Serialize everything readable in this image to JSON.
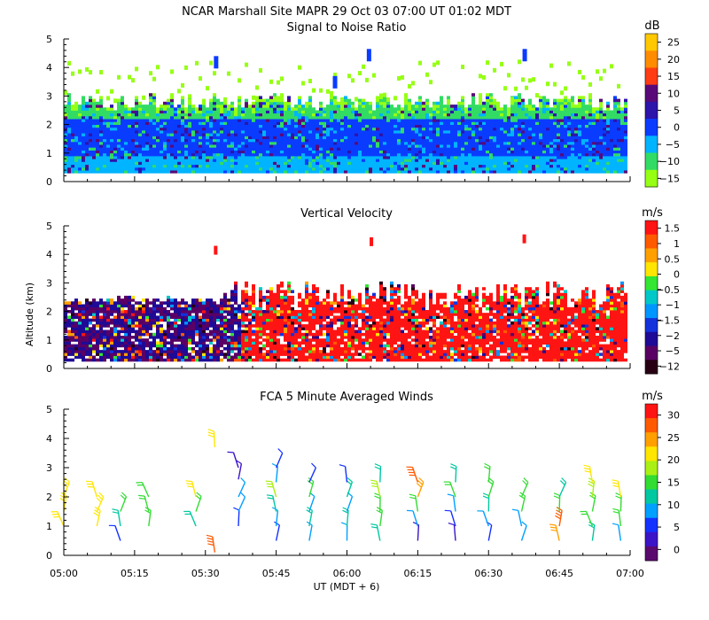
{
  "figure": {
    "title": "NCAR Marshall Site   MAPR 29 Oct 03   07:00 UT   01:02   MDT",
    "xlabel": "UT  (MDT + 6)",
    "x_ticks": [
      "05:00",
      "05:15",
      "05:30",
      "05:45",
      "06:00",
      "06:15",
      "06:30",
      "06:45",
      "07:00"
    ],
    "y_ticks": [
      "0",
      "1",
      "2",
      "3",
      "4",
      "5"
    ],
    "ylabel": "Altitude (km)"
  },
  "chart_data": [
    {
      "type": "heatmap",
      "title": "Signal to Noise Ratio",
      "xlabel": "UT  (MDT + 6)",
      "ylabel": "Altitude (km)",
      "x_range_hours_ut": [
        5.0,
        7.0
      ],
      "ylim": [
        0,
        5
      ],
      "colorbar_unit": "dB",
      "colorbar_ticks": [
        "25",
        "20",
        "15",
        "10",
        "5",
        "0",
        "−5",
        "−10",
        "−15"
      ],
      "colors": [
        "#ffc800",
        "#ff8c00",
        "#ff3c14",
        "#5a0a78",
        "#2d14aa",
        "#0a3cff",
        "#00b4ff",
        "#32dc64",
        "#96ff14"
      ],
      "bands": [
        {
          "from_km": 0.3,
          "to_km": 0.8,
          "dominant_db": -5
        },
        {
          "from_km": 0.8,
          "to_km": 2.2,
          "dominant_db": 0
        },
        {
          "from_km": 2.2,
          "to_km": 2.6,
          "dominant_db": -10
        },
        {
          "from_km": 2.6,
          "to_km": 3.6,
          "dominant_db": -15
        }
      ]
    },
    {
      "type": "heatmap",
      "title": "Vertical Velocity",
      "xlabel": "UT  (MDT + 6)",
      "ylabel": "Altitude (km)",
      "x_range_hours_ut": [
        5.0,
        7.0
      ],
      "ylim": [
        0,
        5
      ],
      "colorbar_unit": "m/s",
      "colorbar_ticks": [
        "1.5",
        "1",
        "0.5",
        "0",
        "−0.5",
        "−1",
        "−1.5",
        "−2",
        "−5",
        "−12"
      ],
      "colors": [
        "#ff1414",
        "#ff5a00",
        "#ffa000",
        "#ffe600",
        "#32e632",
        "#00c8c8",
        "#0096ff",
        "#1432dc",
        "#1e0a96",
        "#5a0064",
        "#280014"
      ],
      "bands": [
        {
          "from_time_ut": "05:00",
          "to_time_ut": "05:40",
          "dominant_ms": -5
        },
        {
          "from_time_ut": "05:40",
          "to_time_ut": "07:00",
          "dominant_ms": 1.5
        }
      ],
      "echo_top_km": 2.4
    },
    {
      "type": "scatter",
      "title": "FCA 5 Minute Averaged Winds",
      "xlabel": "UT  (MDT + 6)",
      "ylabel": "Altitude (km)",
      "x_range_hours_ut": [
        5.0,
        7.0
      ],
      "ylim": [
        0,
        5
      ],
      "colorbar_unit": "m/s",
      "colorbar_ticks": [
        "30",
        "25",
        "20",
        "15",
        "10",
        "5",
        "0"
      ],
      "colors": [
        "#ff1414",
        "#ff5a00",
        "#ffa000",
        "#ffe600",
        "#aaf014",
        "#32dc32",
        "#00c8a0",
        "#00a0ff",
        "#1432ff",
        "#3c14c8",
        "#5a0a6e"
      ],
      "barbs": [
        {
          "time": "05:00",
          "alts_km": [
            1.0,
            1.5,
            2.0
          ],
          "speeds_ms": [
            20,
            22,
            21
          ]
        },
        {
          "time": "05:07",
          "alts_km": [
            1.0,
            1.5,
            2.0
          ],
          "speeds_ms": [
            20,
            22,
            21
          ]
        },
        {
          "time": "05:12",
          "alts_km": [
            0.5,
            1.0,
            1.5
          ],
          "speeds_ms": [
            5,
            12,
            14
          ]
        },
        {
          "time": "05:18",
          "alts_km": [
            1.0,
            1.5,
            2.0
          ],
          "speeds_ms": [
            14,
            15,
            16
          ]
        },
        {
          "time": "05:28",
          "alts_km": [
            1.0,
            1.5,
            2.0
          ],
          "speeds_ms": [
            12,
            14,
            20
          ]
        },
        {
          "time": "05:32",
          "alts_km": [
            0.1,
            3.7
          ],
          "speeds_ms": [
            28,
            22
          ]
        },
        {
          "time": "05:37",
          "alts_km": [
            1.0,
            1.5,
            2.0,
            2.6,
            3.0
          ],
          "speeds_ms": [
            5,
            8,
            10,
            4,
            3
          ]
        },
        {
          "time": "05:45",
          "alts_km": [
            0.5,
            1.0,
            1.5,
            2.0,
            2.5,
            3.0
          ],
          "speeds_ms": [
            6,
            10,
            12,
            18,
            8,
            5
          ]
        },
        {
          "time": "05:52",
          "alts_km": [
            0.5,
            1.0,
            1.5,
            2.0,
            2.5
          ],
          "speeds_ms": [
            8,
            12,
            10,
            15,
            6
          ]
        },
        {
          "time": "06:00",
          "alts_km": [
            0.5,
            1.0,
            1.5,
            2.0,
            2.5
          ],
          "speeds_ms": [
            10,
            13,
            10,
            12,
            6
          ]
        },
        {
          "time": "06:07",
          "alts_km": [
            0.5,
            1.0,
            1.5,
            2.0,
            2.5
          ],
          "speeds_ms": [
            11,
            14,
            16,
            18,
            13
          ]
        },
        {
          "time": "06:15",
          "alts_km": [
            0.5,
            1.0,
            1.5,
            2.0,
            2.5
          ],
          "speeds_ms": [
            4,
            8,
            14,
            24,
            26
          ]
        },
        {
          "time": "06:23",
          "alts_km": [
            0.5,
            1.0,
            1.5,
            2.0,
            2.5
          ],
          "speeds_ms": [
            3,
            6,
            10,
            14,
            12
          ]
        },
        {
          "time": "06:30",
          "alts_km": [
            0.5,
            1.0,
            1.5,
            2.0,
            2.5
          ],
          "speeds_ms": [
            6,
            9,
            12,
            14,
            16
          ]
        },
        {
          "time": "06:37",
          "alts_km": [
            0.5,
            1.0,
            1.5,
            2.0
          ],
          "speeds_ms": [
            8,
            10,
            14,
            16
          ]
        },
        {
          "time": "06:45",
          "alts_km": [
            0.5,
            1.0,
            1.5,
            2.0
          ],
          "speeds_ms": [
            24,
            26,
            14,
            12
          ]
        },
        {
          "time": "06:52",
          "alts_km": [
            0.5,
            1.0,
            1.5,
            2.0,
            2.5
          ],
          "speeds_ms": [
            12,
            15,
            16,
            18,
            20
          ]
        },
        {
          "time": "06:58",
          "alts_km": [
            0.5,
            1.0,
            1.5,
            2.0
          ],
          "speeds_ms": [
            10,
            14,
            16,
            22
          ]
        }
      ]
    }
  ]
}
